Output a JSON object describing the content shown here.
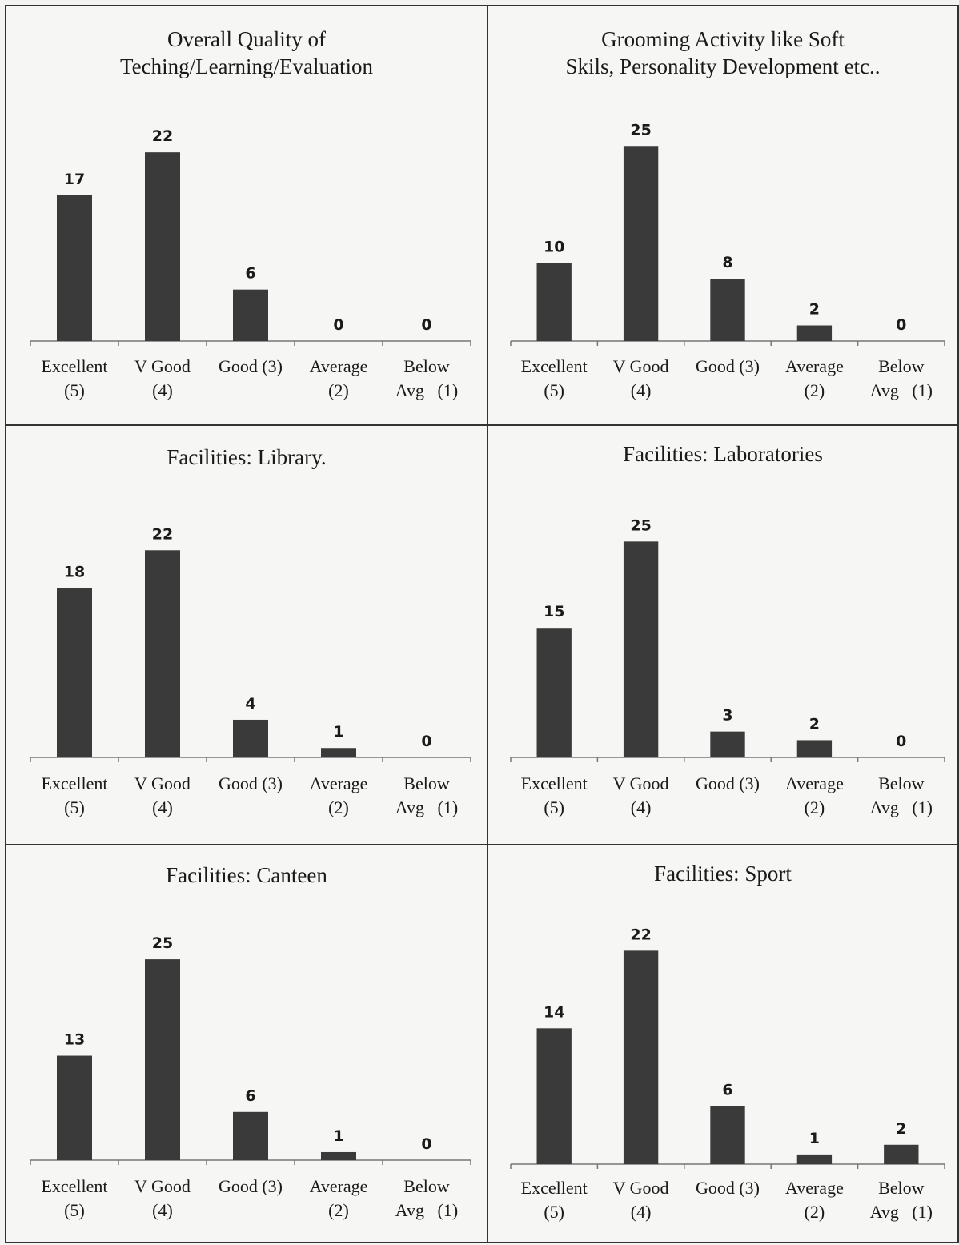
{
  "chart_data": [
    {
      "type": "bar",
      "title": "Overall Quality of",
      "subtitle": "Teching/Learning/Evaluation",
      "categories": [
        [
          "Excellent",
          "(5)"
        ],
        [
          "V Good",
          "(4)"
        ],
        [
          "Good (3)",
          ""
        ],
        [
          "Average",
          "(2)"
        ],
        [
          "Below",
          "Avg   (1)"
        ]
      ],
      "values": [
        17,
        22,
        6,
        0,
        0
      ],
      "value_labels": [
        "17",
        "22",
        "6",
        "0",
        "0"
      ],
      "xlabel": "",
      "ylabel": "",
      "ylim": [
        0,
        25
      ],
      "grid": false,
      "bar_color": "#3a3a3a"
    },
    {
      "type": "bar",
      "title": "Grooming Activity like Soft",
      "subtitle": "Skils, Personality Development etc..",
      "categories": [
        [
          "Excellent",
          "(5)"
        ],
        [
          "V Good",
          "(4)"
        ],
        [
          "Good (3)",
          ""
        ],
        [
          "Average",
          "(2)"
        ],
        [
          "Below",
          "Avg   (1)"
        ]
      ],
      "values": [
        10,
        25,
        8,
        2,
        0
      ],
      "value_labels": [
        "10",
        "25",
        "8",
        "2",
        "0"
      ],
      "xlabel": "",
      "ylabel": "",
      "ylim": [
        0,
        28
      ],
      "grid": false,
      "bar_color": "#3a3a3a"
    },
    {
      "type": "bar",
      "title": "Facilities:   Library.",
      "subtitle": "",
      "categories": [
        [
          "Excellent",
          "(5)"
        ],
        [
          "V Good",
          "(4)"
        ],
        [
          "Good (3)",
          ""
        ],
        [
          "Average",
          "(2)"
        ],
        [
          "Below",
          "Avg   (1)"
        ]
      ],
      "values": [
        18,
        22,
        4,
        1,
        0
      ],
      "value_labels": [
        "18",
        "22",
        "4",
        "1",
        "0"
      ],
      "xlabel": "",
      "ylabel": "",
      "ylim": [
        0,
        25
      ],
      "grid": false,
      "bar_color": "#3a3a3a"
    },
    {
      "type": "bar",
      "title": "Facilities: Laboratories",
      "subtitle": "",
      "categories": [
        [
          "Excellent",
          "(5)"
        ],
        [
          "V Good",
          "(4)"
        ],
        [
          "Good (3)",
          ""
        ],
        [
          "Average",
          "(2)"
        ],
        [
          "Below",
          "Avg   (1)"
        ]
      ],
      "values": [
        15,
        25,
        3,
        2,
        0
      ],
      "value_labels": [
        "15",
        "25",
        "3",
        "2",
        "0"
      ],
      "xlabel": "",
      "ylabel": "",
      "ylim": [
        0,
        28
      ],
      "grid": false,
      "bar_color": "#3a3a3a"
    },
    {
      "type": "bar",
      "title": "Facilities: Canteen",
      "subtitle": "",
      "categories": [
        [
          "Excellent",
          "(5)"
        ],
        [
          "V Good",
          "(4)"
        ],
        [
          "Good (3)",
          ""
        ],
        [
          "Average",
          "(2)"
        ],
        [
          "Below",
          "Avg   (1)"
        ]
      ],
      "values": [
        13,
        25,
        6,
        1,
        0
      ],
      "value_labels": [
        "13",
        "25",
        "6",
        "1",
        "0"
      ],
      "xlabel": "",
      "ylabel": "",
      "ylim": [
        0,
        28
      ],
      "grid": false,
      "bar_color": "#3a3a3a"
    },
    {
      "type": "bar",
      "title": "Facilities: Sport",
      "subtitle": "",
      "categories": [
        [
          "Excellent",
          "(5)"
        ],
        [
          "V Good",
          "(4)"
        ],
        [
          "Good (3)",
          ""
        ],
        [
          "Average",
          "(2)"
        ],
        [
          "Below",
          "Avg   (1)"
        ]
      ],
      "values": [
        14,
        22,
        6,
        1,
        2
      ],
      "value_labels": [
        "14",
        "22",
        "6",
        "1",
        "2"
      ],
      "xlabel": "",
      "ylabel": "",
      "ylim": [
        0,
        25
      ],
      "grid": false,
      "bar_color": "#3a3a3a"
    }
  ]
}
